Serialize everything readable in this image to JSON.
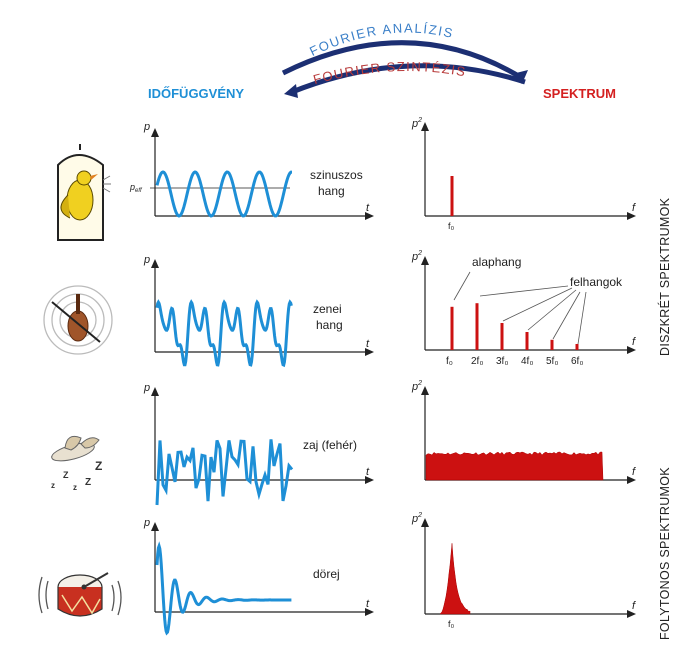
{
  "header": {
    "analysis": "FOURIER ANALÍZIS",
    "synthesis": "FOURIER SZINTÉZIS",
    "time_title": "IDŐFÜGGVÉNY",
    "spectrum_title": "SPEKTRUM"
  },
  "side_labels": {
    "discrete": "DISZKRÉT SPEKTRUMOK",
    "continuous": "FOLYTONOS SPEKTRUMOK"
  },
  "axis_labels": {
    "p": "p",
    "t": "t",
    "f": "f",
    "p2": "p²",
    "peff": "p_eff"
  },
  "rows": [
    {
      "label_line1": "szinuszos",
      "label_line2": "hang",
      "icon": "bird-in-cage-icon"
    },
    {
      "label_line1": "zenei",
      "label_line2": "hang",
      "icon": "violin-icon"
    },
    {
      "label_line1": "zaj (fehér)",
      "label_line2": "",
      "icon": "sleeping-bird-icon"
    },
    {
      "label_line1": "dörej",
      "label_line2": "",
      "icon": "drum-icon"
    }
  ],
  "spectrum_annotations": {
    "fundamental": "alaphang",
    "overtones": "felhangok",
    "tick_f0": "f₀",
    "harmonic_ticks": [
      "f₀",
      "2f₀",
      "3f₀",
      "4f₀",
      "5f₀",
      "6f₀"
    ]
  },
  "colors": {
    "time_curve": "#1e8fd6",
    "spectrum": "#cc1111",
    "arrow": "#1c2f73",
    "title_left": "#1e8fd6",
    "title_right": "#d42020"
  },
  "chart_data": [
    {
      "type": "line",
      "name": "time-sine",
      "description_free": true
    },
    {
      "type": "bar",
      "categories": [
        "f₀"
      ],
      "values": [
        1.0
      ]
    },
    {
      "type": "bar",
      "categories": [
        "f₀",
        "2f₀",
        "3f₀",
        "4f₀",
        "5f₀",
        "6f₀"
      ],
      "values": [
        0.72,
        0.78,
        0.45,
        0.3,
        0.17,
        0.1
      ]
    },
    {
      "type": "area",
      "values_level": 0.35
    },
    {
      "type": "area",
      "peak_at": "f₀"
    }
  ]
}
